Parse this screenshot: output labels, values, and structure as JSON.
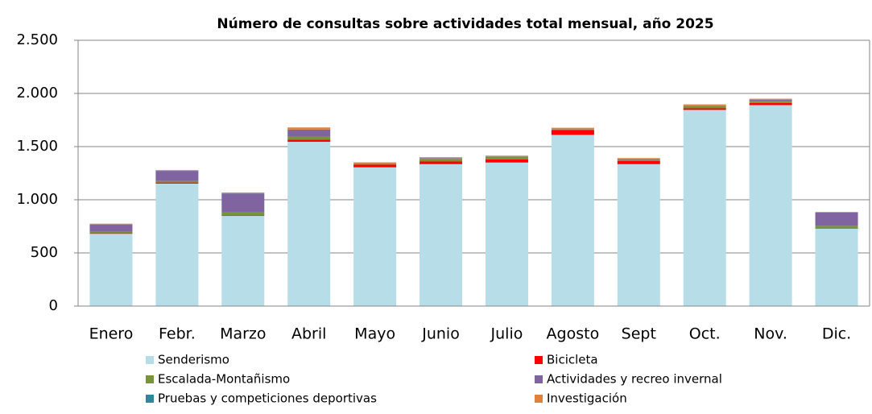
{
  "chart_data": {
    "type": "stacked_bar",
    "title": "Número de consultas sobre actividades total mensual, año 2025",
    "categories": [
      "Enero",
      "Febr.",
      "Marzo",
      "Abril",
      "Mayo",
      "Junio",
      "Julio",
      "Agosto",
      "Sept",
      "Oct.",
      "Nov.",
      "Dic."
    ],
    "series": [
      {
        "name": "Senderismo",
        "color": "#b7dde8",
        "values": [
          680,
          1152,
          848,
          1545,
          1305,
          1335,
          1350,
          1610,
          1335,
          1845,
          1890,
          730
        ]
      },
      {
        "name": "Bicicleta",
        "color": "#ff0000",
        "values": [
          8,
          10,
          5,
          20,
          25,
          25,
          30,
          45,
          30,
          15,
          20,
          5
        ]
      },
      {
        "name": "Escalada-Montañismo",
        "color": "#77933c",
        "values": [
          10,
          15,
          30,
          30,
          10,
          25,
          25,
          5,
          10,
          20,
          20,
          20
        ]
      },
      {
        "name": "Actividades y recreo invernal",
        "color": "#8064a2",
        "values": [
          70,
          95,
          175,
          60,
          0,
          5,
          0,
          0,
          5,
          5,
          10,
          125
        ]
      },
      {
        "name": "Pruebas y competiciones deportivas",
        "color": "#31859c",
        "values": [
          2,
          2,
          2,
          5,
          2,
          2,
          2,
          2,
          2,
          2,
          2,
          2
        ]
      },
      {
        "name": "Investigación",
        "color": "#e0823c",
        "values": [
          5,
          5,
          8,
          20,
          10,
          8,
          8,
          15,
          10,
          10,
          8,
          3
        ]
      }
    ],
    "ylim": [
      0,
      2500
    ],
    "yticks": [
      0,
      500,
      {
        "value": 1000,
        "label": "1.000"
      },
      {
        "value": 1500,
        "label": "1.500"
      },
      {
        "value": 2000,
        "label": "2.000"
      },
      {
        "value": 2500,
        "label": "2.500"
      }
    ],
    "grid": true
  }
}
